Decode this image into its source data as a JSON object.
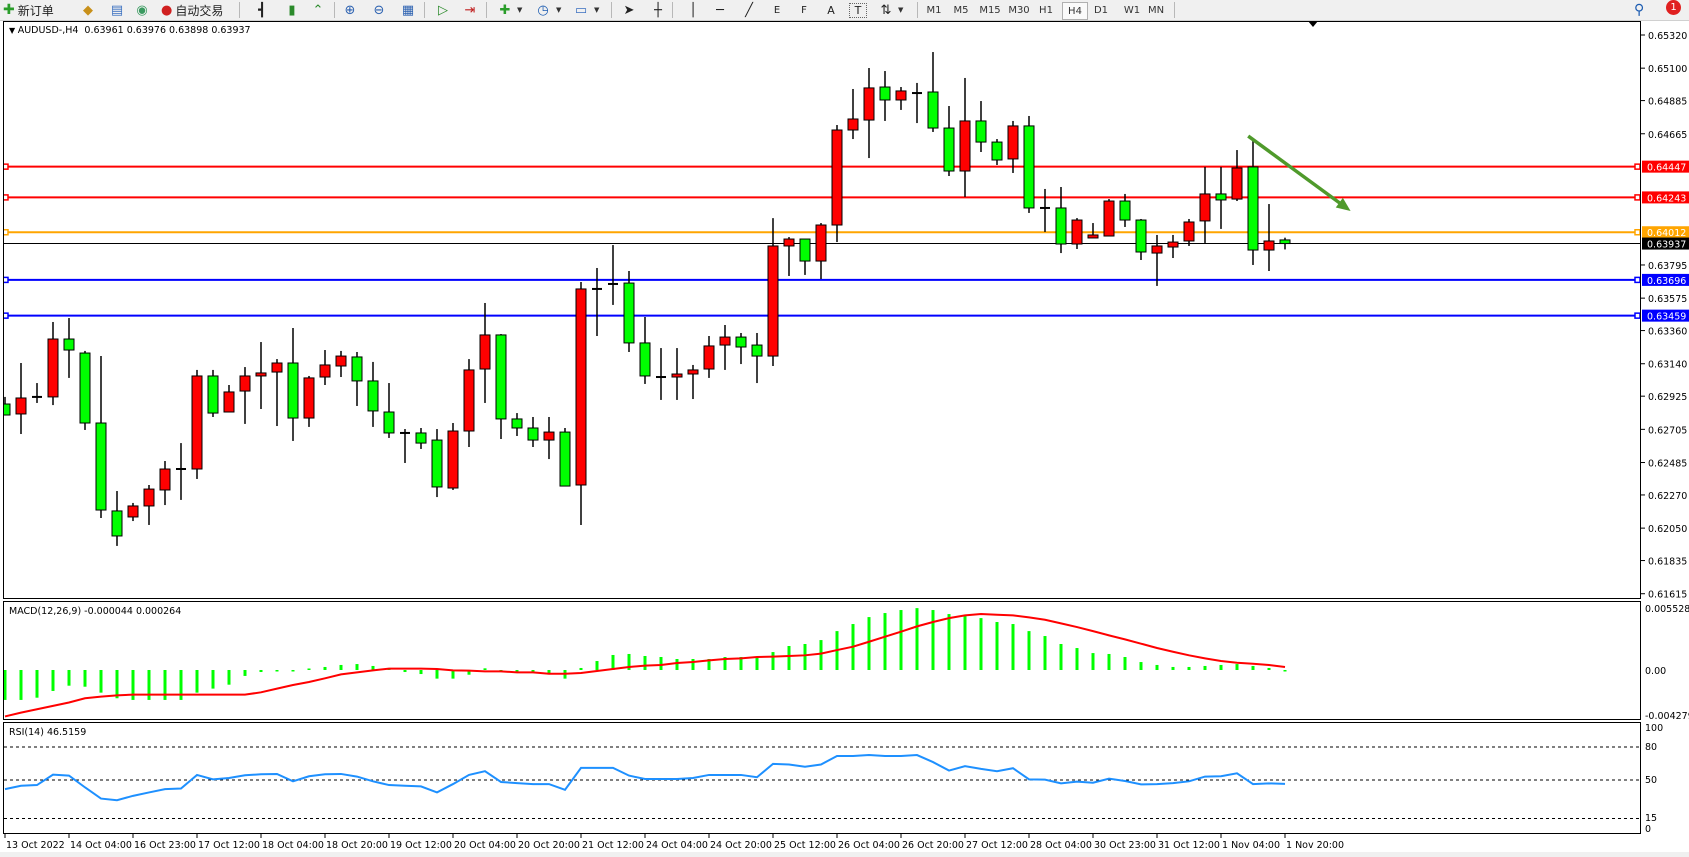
{
  "toolbar": {
    "new_order": "新订单",
    "auto_trading": "自动交易",
    "text_tool": "A",
    "label_tool": "T",
    "channel_tool": "E",
    "fibo_tool": "F",
    "timeframes": [
      "M1",
      "M5",
      "M15",
      "M30",
      "H1",
      "H4",
      "D1",
      "W1",
      "MN"
    ],
    "active_timeframe": "H4",
    "notification_count": "1",
    "icons": [
      "new-order-icon",
      "strategy-icon",
      "history-icon",
      "signals-icon",
      "auto-trading-icon",
      "bar-chart-icon",
      "candlestick-icon",
      "line-chart-icon",
      "zoom-in-icon",
      "zoom-out-icon",
      "tile-windows-icon",
      "chart-shift-icon",
      "autoscroll-icon",
      "indicators-icon",
      "periods-icon",
      "templates-icon",
      "cursor-icon",
      "crosshair-icon",
      "vertical-line-icon",
      "horizontal-line-icon",
      "trendline-icon",
      "search-icon",
      "notification-icon"
    ]
  },
  "chart": {
    "symbol": "AUDUSD-,H4",
    "ohlc": "0.63961 0.63976 0.63898 0.63937",
    "macd_label": "MACD(12,26,9) -0.000044 0.000264",
    "rsi_label": "RSI(14) 46.5159"
  },
  "chart_data": {
    "type": "candlestick",
    "colors": {
      "bull": "#ff0000",
      "bear": "#00ff00",
      "outline": "#000000",
      "macd_hist": "#00ff00",
      "macd_signal": "#ff0000",
      "rsi": "#1e90ff",
      "arrow": "#4f9a2b"
    },
    "candles_ohlc": [
      [
        0.62873,
        0.6292,
        0.628,
        0.628
      ],
      [
        0.62807,
        0.63145,
        0.62674,
        0.62913
      ],
      [
        0.6292,
        0.63012,
        0.6288,
        0.6292
      ],
      [
        0.6292,
        0.63417,
        0.62866,
        0.63304
      ],
      [
        0.63304,
        0.63443,
        0.63046,
        0.63231
      ],
      [
        0.63211,
        0.63225,
        0.62701,
        0.62747
      ],
      [
        0.62747,
        0.63191,
        0.62117,
        0.6217
      ],
      [
        0.62164,
        0.62296,
        0.61932,
        0.61998
      ],
      [
        0.62124,
        0.62217,
        0.62097,
        0.62197
      ],
      [
        0.62197,
        0.62336,
        0.62071,
        0.62309
      ],
      [
        0.62303,
        0.62495,
        0.62203,
        0.62442
      ],
      [
        0.62442,
        0.62614,
        0.62237,
        0.62442
      ],
      [
        0.62442,
        0.63099,
        0.62376,
        0.63059
      ],
      [
        0.63059,
        0.63099,
        0.62787,
        0.62813
      ],
      [
        0.6282,
        0.62999,
        0.6282,
        0.62953
      ],
      [
        0.62959,
        0.63118,
        0.62741,
        0.63059
      ],
      [
        0.63059,
        0.63284,
        0.6284,
        0.63079
      ],
      [
        0.63085,
        0.63171,
        0.62727,
        0.63145
      ],
      [
        0.63145,
        0.63377,
        0.62628,
        0.6278
      ],
      [
        0.6278,
        0.63059,
        0.62721,
        0.63046
      ],
      [
        0.63052,
        0.63231,
        0.62999,
        0.63132
      ],
      [
        0.63125,
        0.63225,
        0.63052,
        0.63191
      ],
      [
        0.63185,
        0.63218,
        0.6286,
        0.63026
      ],
      [
        0.63026,
        0.63152,
        0.62721,
        0.62827
      ],
      [
        0.6282,
        0.63012,
        0.62648,
        0.62681
      ],
      [
        0.62681,
        0.62707,
        0.62482,
        0.62681
      ],
      [
        0.62681,
        0.62714,
        0.62575,
        0.62614
      ],
      [
        0.62634,
        0.62707,
        0.62256,
        0.62323
      ],
      [
        0.62316,
        0.62747,
        0.62303,
        0.62694
      ],
      [
        0.62694,
        0.63171,
        0.62588,
        0.63099
      ],
      [
        0.63105,
        0.63543,
        0.6288,
        0.63331
      ],
      [
        0.63331,
        0.63337,
        0.62641,
        0.62774
      ],
      [
        0.62774,
        0.62813,
        0.62661,
        0.62714
      ],
      [
        0.62714,
        0.62787,
        0.62588,
        0.62634
      ],
      [
        0.62634,
        0.62787,
        0.62508,
        0.62687
      ],
      [
        0.62687,
        0.62714,
        0.62329,
        0.62329
      ],
      [
        0.62336,
        0.63682,
        0.62071,
        0.63636
      ],
      [
        0.63636,
        0.63775,
        0.63324,
        0.63636
      ],
      [
        0.63669,
        0.63927,
        0.6353,
        0.63669
      ],
      [
        0.63675,
        0.63755,
        0.63218,
        0.63278
      ],
      [
        0.63278,
        0.6345,
        0.63006,
        0.63059
      ],
      [
        0.63052,
        0.63244,
        0.629,
        0.63052
      ],
      [
        0.63052,
        0.63244,
        0.629,
        0.63072
      ],
      [
        0.63072,
        0.63132,
        0.62906,
        0.63099
      ],
      [
        0.63105,
        0.63324,
        0.63046,
        0.63258
      ],
      [
        0.63264,
        0.63397,
        0.63099,
        0.63317
      ],
      [
        0.63317,
        0.63344,
        0.63138,
        0.63251
      ],
      [
        0.63264,
        0.63344,
        0.63012,
        0.63191
      ],
      [
        0.63191,
        0.64106,
        0.63125,
        0.63921
      ],
      [
        0.63921,
        0.6398,
        0.63722,
        0.63967
      ],
      [
        0.63967,
        0.63967,
        0.63729,
        0.63821
      ],
      [
        0.63821,
        0.64073,
        0.63702,
        0.6406
      ],
      [
        0.6406,
        0.64723,
        0.63947,
        0.6469
      ],
      [
        0.6469,
        0.64962,
        0.6463,
        0.64763
      ],
      [
        0.64756,
        0.65101,
        0.64504,
        0.64969
      ],
      [
        0.64975,
        0.65081,
        0.6475,
        0.64889
      ],
      [
        0.64889,
        0.64975,
        0.64823,
        0.64949
      ],
      [
        0.64935,
        0.65002,
        0.64736,
        0.64935
      ],
      [
        0.64942,
        0.65207,
        0.64677,
        0.64703
      ],
      [
        0.64703,
        0.64849,
        0.64385,
        0.64418
      ],
      [
        0.64418,
        0.65035,
        0.64246,
        0.6475
      ],
      [
        0.6475,
        0.64882,
        0.64544,
        0.6461
      ],
      [
        0.6461,
        0.6463,
        0.64458,
        0.64491
      ],
      [
        0.64498,
        0.6475,
        0.64405,
        0.64717
      ],
      [
        0.64717,
        0.64783,
        0.6414,
        0.64173
      ],
      [
        0.64173,
        0.64299,
        0.64014,
        0.64173
      ],
      [
        0.64173,
        0.64312,
        0.63874,
        0.63934
      ],
      [
        0.63934,
        0.64106,
        0.63901,
        0.64093
      ],
      [
        0.63974,
        0.64073,
        0.63974,
        0.63994
      ],
      [
        0.63987,
        0.64232,
        0.63987,
        0.64219
      ],
      [
        0.64219,
        0.64266,
        0.64047,
        0.64093
      ],
      [
        0.64093,
        0.641,
        0.63828,
        0.63881
      ],
      [
        0.63874,
        0.63994,
        0.63656,
        0.63921
      ],
      [
        0.63914,
        0.63994,
        0.63841,
        0.63947
      ],
      [
        0.63954,
        0.641,
        0.63921,
        0.6408
      ],
      [
        0.64087,
        0.64445,
        0.63941,
        0.64266
      ],
      [
        0.64266,
        0.64445,
        0.64034,
        0.64226
      ],
      [
        0.64232,
        0.64557,
        0.64219,
        0.64438
      ],
      [
        0.64445,
        0.64617,
        0.63795,
        0.63894
      ],
      [
        0.63894,
        0.64199,
        0.63755,
        0.63954
      ],
      [
        0.63961,
        0.63976,
        0.63898,
        0.63937
      ]
    ],
    "time_labels": [
      "13 Oct 2022",
      "14 Oct 04:00",
      "16 Oct 23:00",
      "17 Oct 12:00",
      "18 Oct 04:00",
      "18 Oct 20:00",
      "19 Oct 12:00",
      "20 Oct 04:00",
      "20 Oct 20:00",
      "21 Oct 12:00",
      "24 Oct 04:00",
      "24 Oct 20:00",
      "25 Oct 12:00",
      "26 Oct 04:00",
      "26 Oct 20:00",
      "27 Oct 12:00",
      "28 Oct 04:00",
      "30 Oct 23:00",
      "31 Oct 12:00",
      "1 Nov 04:00",
      "1 Nov 20:00"
    ],
    "price_ticks": [
      "0.65320",
      "0.65100",
      "0.64885",
      "0.64665",
      "0.63795",
      "0.63575",
      "0.63360",
      "0.63140",
      "0.62925",
      "0.62705",
      "0.62485",
      "0.62270",
      "0.62050",
      "0.61835",
      "0.61615"
    ],
    "price_range": [
      0.61615,
      0.6532
    ],
    "levels": [
      {
        "price": "0.64447",
        "color": "#ff0000"
      },
      {
        "price": "0.64243",
        "color": "#ff0000"
      },
      {
        "price": "0.64012",
        "color": "#ffa500"
      },
      {
        "price": "0.63696",
        "color": "#0000ff"
      },
      {
        "price": "0.63459",
        "color": "#0000ff"
      }
    ],
    "current_price": "0.63937",
    "trend_arrow": {
      "from": {
        "bar": 77.7,
        "price": 0.6465
      },
      "to": {
        "bar": 84.1,
        "price": 0.64153
      }
    },
    "macd": {
      "ticks": [
        "0.005528",
        "0.00",
        "-0.004279"
      ],
      "histogram": [
        -0.00267,
        -0.00267,
        -0.00247,
        -0.00187,
        -0.0014,
        -0.00149,
        -0.00202,
        -0.00252,
        -0.00267,
        -0.00267,
        -0.00267,
        -0.00267,
        -0.00202,
        -0.00166,
        -0.00131,
        -0.00053,
        -0.00018,
        -6e-05,
        -4e-05,
        6e-05,
        0.00027,
        0.00045,
        0.00053,
        0.00036,
        9e-05,
        -0.00018,
        -0.00036,
        -0.00077,
        -0.00077,
        -0.00042,
        0.00015,
        -9e-05,
        -0.00024,
        -0.00021,
        -0.00033,
        -0.00077,
        0.00018,
        0.0008,
        0.00134,
        0.00143,
        0.00125,
        0.00116,
        0.00098,
        0.00098,
        0.00098,
        0.00116,
        0.00116,
        0.00116,
        0.0016,
        0.00214,
        0.00232,
        0.00267,
        0.00347,
        0.0041,
        0.00472,
        0.00508,
        0.00535,
        0.00552,
        0.00535,
        0.00499,
        0.00481,
        0.00463,
        0.00428,
        0.0041,
        0.00347,
        0.00303,
        0.00232,
        0.00196,
        0.00151,
        0.00143,
        0.00116,
        0.00071,
        0.00045,
        0.00027,
        0.00027,
        0.00036,
        0.00045,
        0.00053,
        0.00036,
        0.00018,
        -4.4e-05
      ],
      "signal": [
        -0.00414,
        -0.0038,
        -0.0035,
        -0.0032,
        -0.0029,
        -0.00252,
        -0.00238,
        -0.00226,
        -0.0022,
        -0.0022,
        -0.0022,
        -0.0022,
        -0.0022,
        -0.0022,
        -0.0022,
        -0.0022,
        -0.00199,
        -0.00166,
        -0.00134,
        -0.00107,
        -0.00074,
        -0.00039,
        -0.00021,
        -3e-05,
        0.00012,
        0.00012,
        0.00012,
        9e-05,
        -3e-05,
        -6e-05,
        -0.00012,
        -0.00012,
        -0.00021,
        -0.00021,
        -0.00033,
        -0.00033,
        -0.00027,
        -9e-05,
        9e-05,
        0.00027,
        0.00039,
        0.00045,
        0.00062,
        0.00071,
        0.00086,
        0.00098,
        0.00104,
        0.00116,
        0.00119,
        0.00125,
        0.00131,
        0.00146,
        0.00178,
        0.00208,
        0.00252,
        0.00297,
        0.00342,
        0.00389,
        0.00428,
        0.00463,
        0.00487,
        0.00499,
        0.00493,
        0.00487,
        0.00469,
        0.00448,
        0.00416,
        0.00383,
        0.00347,
        0.00309,
        0.00273,
        0.00235,
        0.00196,
        0.00163,
        0.00131,
        0.00104,
        0.0008,
        0.00065,
        0.00056,
        0.00045,
        0.000264
      ]
    },
    "rsi": {
      "ticks": [
        "100",
        "80",
        "50",
        "15",
        "0"
      ],
      "levels": [
        80,
        50,
        15
      ],
      "values": [
        41.7,
        44.8,
        45.4,
        54.9,
        54,
        43.3,
        33.1,
        31.6,
        35.6,
        38.7,
        41.7,
        42.3,
        54.6,
        50.6,
        51.8,
        54.3,
        55.2,
        55.5,
        48.8,
        53.4,
        55.2,
        55.5,
        53.1,
        48.8,
        45.4,
        44.8,
        44.2,
        38.7,
        46.3,
        54.6,
        58,
        48.2,
        47.2,
        46.3,
        46.3,
        41.1,
        61,
        61,
        61,
        54,
        50.9,
        50.9,
        50.9,
        51.8,
        54.6,
        54.6,
        54.6,
        52.5,
        64.7,
        64.1,
        62,
        64.1,
        71.8,
        71.8,
        72.7,
        71.8,
        71.8,
        72.7,
        66.3,
        58.6,
        62.6,
        60.1,
        58,
        60.7,
        50.6,
        50.3,
        46.9,
        48.5,
        47.5,
        51.2,
        49.1,
        46,
        46.3,
        47.2,
        48.8,
        53.1,
        53.4,
        56.1,
        46.3,
        46.9,
        46.5159
      ]
    }
  }
}
